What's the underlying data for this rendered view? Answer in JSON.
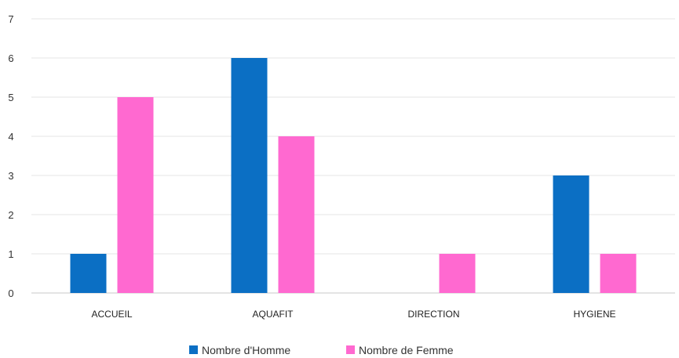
{
  "chart_data": {
    "type": "bar",
    "categories": [
      "ACCUEIL",
      "AQUAFIT",
      "DIRECTION",
      "HYGIENE"
    ],
    "series": [
      {
        "name": "Nombre d'Homme",
        "values": [
          1,
          6,
          0,
          3
        ],
        "color": "#0b6fc4"
      },
      {
        "name": "Nombre de Femme",
        "values": [
          5,
          4,
          1,
          1
        ],
        "color": "#ff69d0"
      }
    ],
    "ylim": [
      0,
      7
    ],
    "yticks": [
      0,
      1,
      2,
      3,
      4,
      5,
      6,
      7
    ],
    "grid": true,
    "legend_position": "bottom"
  }
}
